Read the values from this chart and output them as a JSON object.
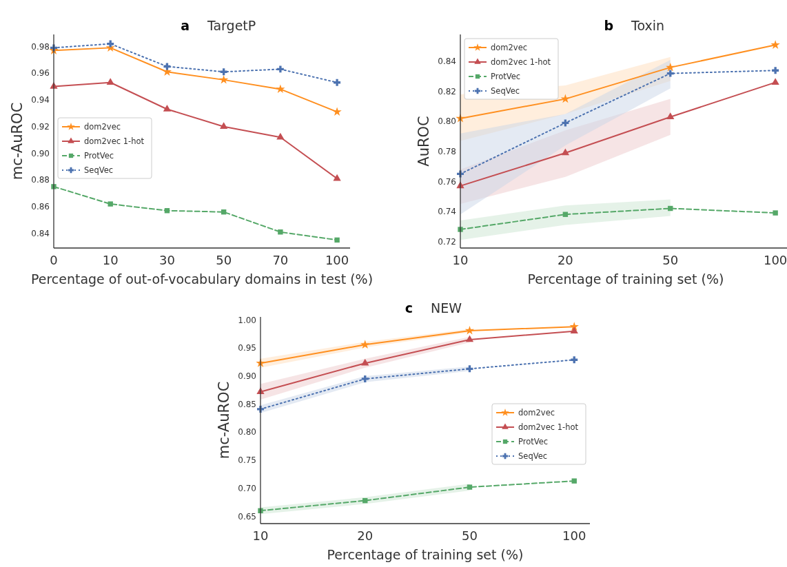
{
  "chart_data": [
    {
      "type": "line",
      "title": "TargetP",
      "annotations": [
        "a"
      ],
      "xlabel": "Percentage of out-of-vocabulary domains in test (%)",
      "ylabel": "mc-AuROC",
      "categories": [
        "0",
        "10",
        "30",
        "50",
        "70",
        "100"
      ],
      "ylim": [
        0.829,
        0.989
      ],
      "yticks": [
        0.84,
        0.86,
        0.88,
        {
          "value": 0.9,
          "label": "0.90"
        },
        0.92,
        0.94,
        0.96,
        0.98
      ],
      "grid": false,
      "legend": "left",
      "series": [
        {
          "name": "dom2vec",
          "color": "#ff8f1f",
          "marker": "star",
          "line_style": "solid",
          "values": [
            0.977,
            0.979,
            0.961,
            0.955,
            0.948,
            0.931
          ]
        },
        {
          "name": "dom2vec 1-hot",
          "color": "#c44e52",
          "marker": "triangle",
          "line_style": "solid",
          "values": [
            0.95,
            0.953,
            0.933,
            0.92,
            0.912,
            0.881
          ]
        },
        {
          "name": "ProtVec",
          "color": "#55a868",
          "marker": "square",
          "line_style": "dashed",
          "values": [
            0.875,
            0.862,
            0.857,
            0.856,
            0.841,
            0.835
          ]
        },
        {
          "name": "SeqVec",
          "color": "#4c72b0",
          "marker": "cross",
          "line_style": "dotted",
          "values": [
            0.979,
            0.982,
            0.965,
            0.961,
            0.963,
            0.953
          ]
        }
      ]
    },
    {
      "type": "line",
      "title": "Toxin",
      "annotations": [
        "b"
      ],
      "xlabel": "Percentage of training set (%)",
      "ylabel": "AuROC",
      "categories": [
        "10",
        "20",
        "50",
        "100"
      ],
      "ylim": [
        0.7156,
        0.858
      ],
      "yticks": [
        0.72,
        0.74,
        0.76,
        0.78,
        {
          "value": 0.8,
          "label": "0.80"
        },
        0.82,
        0.84
      ],
      "grid": false,
      "legend": "top left",
      "series": [
        {
          "name": "dom2vec",
          "color": "#ff8f1f",
          "marker": "star",
          "line_style": "solid",
          "values": [
            0.802,
            0.815,
            0.836,
            0.851
          ],
          "lower": [
            0.787,
            0.805,
            0.827,
            null
          ],
          "upper": [
            0.818,
            0.824,
            0.843,
            null
          ]
        },
        {
          "name": "dom2vec 1-hot",
          "color": "#c44e52",
          "marker": "triangle",
          "line_style": "solid",
          "values": [
            0.757,
            0.779,
            0.803,
            0.826
          ],
          "lower": [
            0.745,
            0.763,
            0.791,
            null
          ],
          "upper": [
            0.768,
            0.794,
            0.815,
            null
          ]
        },
        {
          "name": "ProtVec",
          "color": "#55a868",
          "marker": "square",
          "line_style": "dashed",
          "values": [
            0.728,
            0.738,
            0.742,
            0.739
          ],
          "lower": [
            0.721,
            0.731,
            0.737,
            null
          ],
          "upper": [
            0.734,
            0.744,
            0.748,
            null
          ]
        },
        {
          "name": "SeqVec",
          "color": "#4c72b0",
          "marker": "cross",
          "line_style": "dotted",
          "values": [
            0.765,
            0.799,
            0.832,
            0.834
          ],
          "lower": [
            0.738,
            0.784,
            0.822,
            null
          ],
          "upper": [
            0.792,
            0.805,
            0.841,
            null
          ]
        }
      ]
    },
    {
      "type": "line",
      "title": "NEW",
      "annotations": [
        "c"
      ],
      "xlabel": "Percentage of training set (%)",
      "ylabel": "mc-AuROC",
      "categories": [
        "10",
        "20",
        "50",
        "100"
      ],
      "ylim": [
        0.637,
        1.0055
      ],
      "yticks": [
        0.65,
        {
          "value": 0.7,
          "label": "0.70"
        },
        0.75,
        {
          "value": 0.8,
          "label": "0.80"
        },
        0.85,
        {
          "value": 0.9,
          "label": "0.90"
        },
        0.95,
        {
          "value": 1.0,
          "label": "1.00"
        }
      ],
      "grid": false,
      "legend": "right",
      "series": [
        {
          "name": "dom2vec",
          "color": "#ff8f1f",
          "marker": "star",
          "line_style": "solid",
          "values": [
            0.923,
            0.956,
            0.981,
            0.988
          ],
          "lower": [
            0.915,
            0.951,
            0.978,
            null
          ],
          "upper": [
            0.931,
            0.961,
            0.984,
            null
          ]
        },
        {
          "name": "dom2vec 1-hot",
          "color": "#c44e52",
          "marker": "triangle",
          "line_style": "solid",
          "values": [
            0.872,
            0.923,
            0.965,
            0.98
          ],
          "lower": [
            0.858,
            0.915,
            0.96,
            null
          ],
          "upper": [
            0.886,
            0.931,
            0.97,
            null
          ]
        },
        {
          "name": "ProtVec",
          "color": "#55a868",
          "marker": "square",
          "line_style": "dashed",
          "values": [
            0.66,
            0.678,
            0.702,
            0.713
          ],
          "lower": [
            0.654,
            0.672,
            0.696,
            null
          ],
          "upper": [
            0.666,
            0.684,
            0.708,
            null
          ]
        },
        {
          "name": "SeqVec",
          "color": "#4c72b0",
          "marker": "cross",
          "line_style": "dotted",
          "values": [
            0.841,
            0.895,
            0.913,
            0.929
          ],
          "lower": [
            0.834,
            0.889,
            0.909,
            null
          ],
          "upper": [
            0.848,
            0.9,
            0.917,
            null
          ]
        }
      ]
    }
  ]
}
